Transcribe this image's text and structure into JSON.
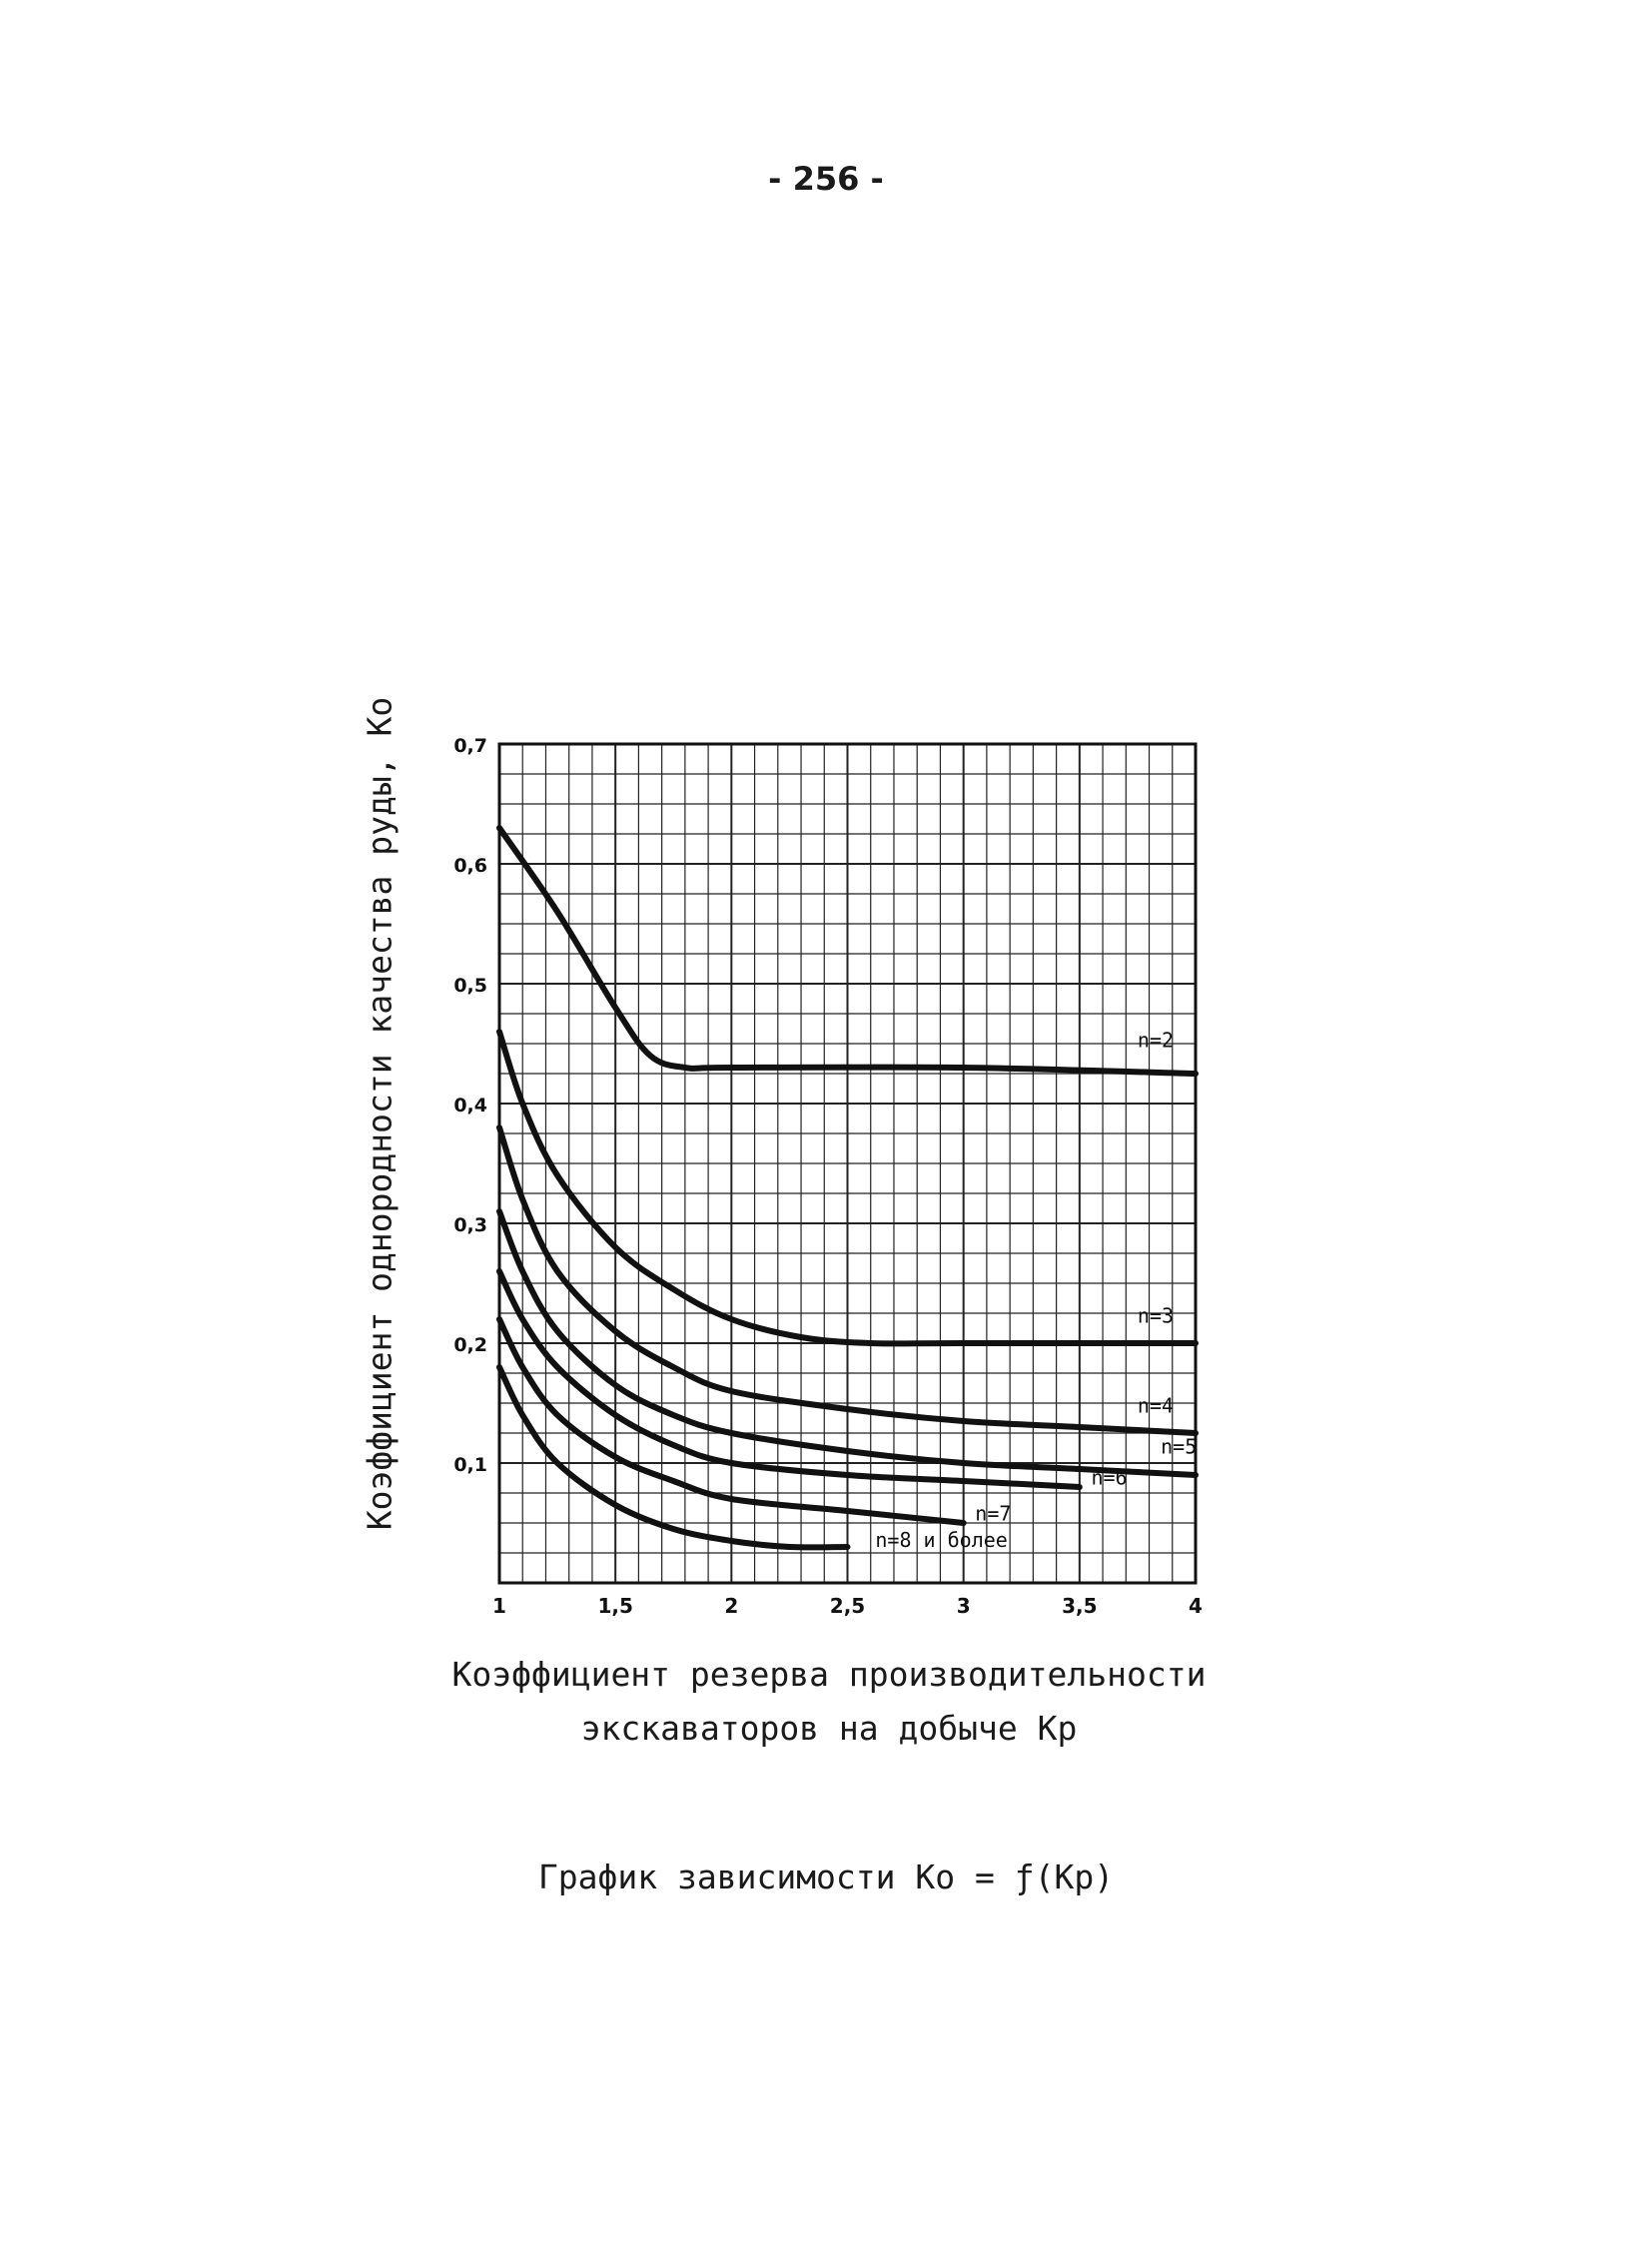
{
  "page": {
    "number": "- 256 -"
  },
  "figure": {
    "caption": "График зависимости Ко = ƒ(Кр)",
    "xlabel_line1": "Коэффициент резерва производительности",
    "xlabel_line2": "экскаваторов на добыче Кр"
  },
  "chart_data": {
    "type": "line",
    "title": "",
    "xlabel": "Коэффициент резерва производительности экскаваторов на добыче Кр",
    "ylabel": "Коэффициент однородности качества руды, Ко",
    "xlim": [
      1,
      4
    ],
    "ylim": [
      0,
      0.7
    ],
    "grid": true,
    "x_ticks": [
      "1",
      "1,5",
      "2",
      "2,5",
      "3",
      "3,5",
      "4"
    ],
    "y_ticks": [
      "0,1",
      "0,2",
      "0,3",
      "0,4",
      "0,5",
      "0,6",
      "0,7"
    ],
    "series": [
      {
        "name": "n=2",
        "x": [
          1.0,
          1.25,
          1.5,
          1.65,
          1.8,
          2.0,
          3.0,
          4.0
        ],
        "y": [
          0.63,
          0.56,
          0.48,
          0.44,
          0.43,
          0.43,
          0.43,
          0.425
        ]
      },
      {
        "name": "n=3",
        "x": [
          1.0,
          1.1,
          1.25,
          1.5,
          1.75,
          2.0,
          2.3,
          2.6,
          3.0,
          4.0
        ],
        "y": [
          0.46,
          0.4,
          0.34,
          0.28,
          0.245,
          0.22,
          0.205,
          0.2,
          0.2,
          0.2
        ]
      },
      {
        "name": "n=4",
        "x": [
          1.0,
          1.1,
          1.25,
          1.5,
          1.75,
          2.0,
          2.5,
          3.0,
          3.5,
          4.0
        ],
        "y": [
          0.38,
          0.32,
          0.26,
          0.21,
          0.18,
          0.16,
          0.145,
          0.135,
          0.13,
          0.125
        ]
      },
      {
        "name": "n=5",
        "x": [
          1.0,
          1.1,
          1.25,
          1.5,
          1.75,
          2.0,
          2.5,
          3.0,
          3.5,
          4.0
        ],
        "y": [
          0.31,
          0.26,
          0.21,
          0.165,
          0.14,
          0.125,
          0.11,
          0.1,
          0.095,
          0.09
        ]
      },
      {
        "name": "n=6",
        "x": [
          1.0,
          1.1,
          1.25,
          1.5,
          1.75,
          2.0,
          2.5,
          3.0,
          3.5
        ],
        "y": [
          0.26,
          0.22,
          0.18,
          0.14,
          0.115,
          0.1,
          0.09,
          0.085,
          0.08
        ]
      },
      {
        "name": "n=7",
        "x": [
          1.0,
          1.1,
          1.25,
          1.5,
          1.75,
          2.0,
          2.5,
          3.0
        ],
        "y": [
          0.22,
          0.18,
          0.14,
          0.105,
          0.085,
          0.07,
          0.06,
          0.05
        ]
      },
      {
        "name": "n=8 и более",
        "x": [
          1.0,
          1.1,
          1.25,
          1.5,
          1.75,
          2.0,
          2.25,
          2.5
        ],
        "y": [
          0.18,
          0.14,
          0.1,
          0.065,
          0.045,
          0.035,
          0.03,
          0.03
        ]
      }
    ],
    "labels": [
      {
        "text": "n=2",
        "x": 3.75,
        "y": 0.447
      },
      {
        "text": "n=3",
        "x": 3.75,
        "y": 0.217
      },
      {
        "text": "n=4",
        "x": 3.75,
        "y": 0.142
      },
      {
        "text": "n=5",
        "x": 3.85,
        "y": 0.108
      },
      {
        "text": "n=6",
        "x": 3.55,
        "y": 0.082
      },
      {
        "text": "n=7",
        "x": 3.05,
        "y": 0.052
      },
      {
        "text": "n=8 и более",
        "x": 2.62,
        "y": 0.03
      }
    ]
  }
}
